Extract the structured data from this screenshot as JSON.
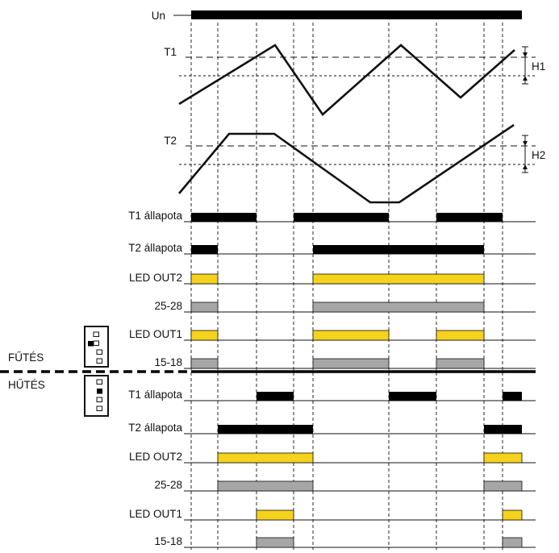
{
  "labels": {
    "un": "Un",
    "t1": "T1",
    "t2": "T2",
    "h1": "H1",
    "h2": "H2",
    "heating": "FŰTÉS",
    "cooling": "HŰTÉS"
  },
  "heating_rows": [
    {
      "label": "T1 állapota",
      "kind": "state"
    },
    {
      "label": "T2 állapota",
      "kind": "state"
    },
    {
      "label": "LED OUT2",
      "kind": "led"
    },
    {
      "label": "25-28",
      "kind": "relay"
    },
    {
      "label": "LED OUT1",
      "kind": "led"
    },
    {
      "label": "15-18",
      "kind": "relay"
    }
  ],
  "cooling_rows": [
    {
      "label": "T1 állapota",
      "kind": "state"
    },
    {
      "label": "T2 állapota",
      "kind": "state"
    },
    {
      "label": "LED OUT2",
      "kind": "led"
    },
    {
      "label": "25-28",
      "kind": "relay"
    },
    {
      "label": "LED OUT1",
      "kind": "led"
    },
    {
      "label": "15-18",
      "kind": "relay"
    }
  ],
  "colors": {
    "line": "#111111",
    "state_bar": "#000000",
    "led": "#f5d21c",
    "relay": "#a6a6a6"
  },
  "icons": [
    "dip-switch-heating-icon",
    "dip-switch-cooling-icon"
  ]
}
